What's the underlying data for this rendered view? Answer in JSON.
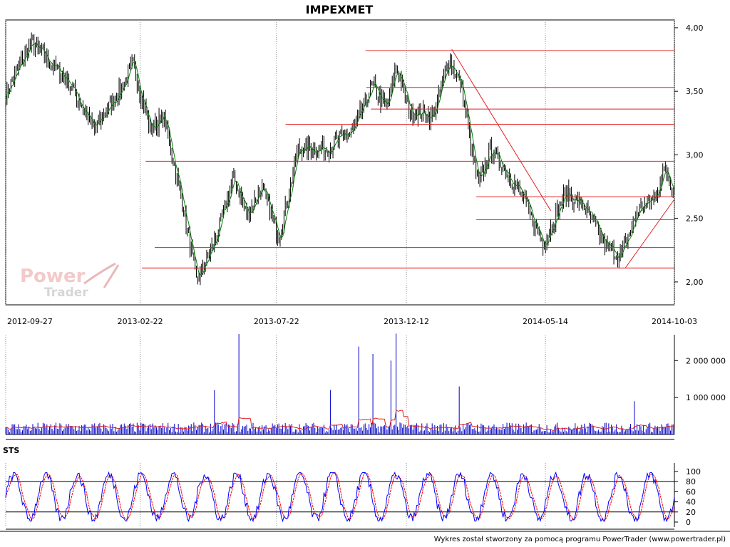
{
  "title": "IMPEXMET",
  "footer": "Wykres został stworzony za pomocą programu PowerTrader (www.powertrader.pl)",
  "watermark": {
    "line1": "Power",
    "line2": "Trader"
  },
  "colors": {
    "price_candles": "#000000",
    "price_average": "#008000",
    "trend_lines": "#e02020",
    "volume_bars": "#0000cc",
    "volume_average": "#e02020",
    "stoch_k": "#0000ff",
    "stoch_d": "#ff0000",
    "grid": "#000000"
  },
  "chart_data": [
    {
      "name": "price",
      "type": "candlestick",
      "title": "IMPEXMET",
      "x_ticks": [
        "2012-09-27",
        "2013-02-22",
        "2013-07-22",
        "2013-12-12",
        "2014-05-14",
        "2014-10-03"
      ],
      "y_ticks": [
        "4,00",
        "3,50",
        "3,00",
        "2,50",
        "2,00"
      ],
      "y_tick_values": [
        4.0,
        3.5,
        3.0,
        2.5,
        2.0
      ],
      "ylim": [
        1.82,
        4.05
      ],
      "x_range": [
        "2012-09-27",
        "2014-10-03"
      ],
      "grid": "vertical dotted",
      "key_closes": [
        {
          "date": "2012-09-27",
          "close": 3.48
        },
        {
          "date": "2012-10-25",
          "close": 3.88
        },
        {
          "date": "2012-12-05",
          "close": 3.58
        },
        {
          "date": "2013-01-02",
          "close": 3.2
        },
        {
          "date": "2013-02-01",
          "close": 3.52
        },
        {
          "date": "2013-02-14",
          "close": 3.72
        },
        {
          "date": "2013-03-05",
          "close": 3.2
        },
        {
          "date": "2013-03-20",
          "close": 3.3
        },
        {
          "date": "2013-04-10",
          "close": 2.6
        },
        {
          "date": "2013-04-25",
          "close": 2.0
        },
        {
          "date": "2013-05-15",
          "close": 2.32
        },
        {
          "date": "2013-06-05",
          "close": 2.82
        },
        {
          "date": "2013-06-20",
          "close": 2.52
        },
        {
          "date": "2013-07-05",
          "close": 2.75
        },
        {
          "date": "2013-07-25",
          "close": 2.35
        },
        {
          "date": "2013-08-15",
          "close": 3.05
        },
        {
          "date": "2013-09-15",
          "close": 3.05
        },
        {
          "date": "2013-10-15",
          "close": 3.2
        },
        {
          "date": "2013-11-05",
          "close": 3.55
        },
        {
          "date": "2013-11-20",
          "close": 3.35
        },
        {
          "date": "2013-12-01",
          "close": 3.7
        },
        {
          "date": "2013-12-15",
          "close": 3.35
        },
        {
          "date": "2014-01-10",
          "close": 3.3
        },
        {
          "date": "2014-01-28",
          "close": 3.75
        },
        {
          "date": "2014-02-10",
          "close": 3.55
        },
        {
          "date": "2014-03-01",
          "close": 2.75
        },
        {
          "date": "2014-03-15",
          "close": 3.05
        },
        {
          "date": "2014-04-15",
          "close": 2.72
        },
        {
          "date": "2014-05-12",
          "close": 2.3
        },
        {
          "date": "2014-06-05",
          "close": 2.7
        },
        {
          "date": "2014-06-25",
          "close": 2.6
        },
        {
          "date": "2014-07-20",
          "close": 2.28
        },
        {
          "date": "2014-08-05",
          "close": 2.2
        },
        {
          "date": "2014-08-25",
          "close": 2.58
        },
        {
          "date": "2014-09-10",
          "close": 2.65
        },
        {
          "date": "2014-09-23",
          "close": 2.9
        },
        {
          "date": "2014-10-03",
          "close": 2.7
        }
      ],
      "horizontal_levels": [
        {
          "price": 3.82,
          "from": "2013-10-28",
          "to": "2014-10-03"
        },
        {
          "price": 3.53,
          "from": "2013-10-29",
          "to": "2014-10-03"
        },
        {
          "price": 3.36,
          "from": "2013-11-03",
          "to": "2014-10-03"
        },
        {
          "price": 3.24,
          "from": "2013-08-01",
          "to": "2014-10-03"
        },
        {
          "price": 2.95,
          "from": "2013-02-28",
          "to": "2014-10-03"
        },
        {
          "price": 2.67,
          "from": "2014-02-27",
          "to": "2014-10-03"
        },
        {
          "price": 2.49,
          "from": "2014-02-27",
          "to": "2014-10-03"
        },
        {
          "price": 2.27,
          "from": "2013-03-10",
          "to": "2014-10-03"
        },
        {
          "price": 2.11,
          "from": "2013-02-24",
          "to": "2014-10-03"
        }
      ],
      "trend_lines": [
        {
          "from": {
            "date": "2014-01-31",
            "price": 3.83
          },
          "to": {
            "date": "2014-05-20",
            "price": 2.56
          }
        },
        {
          "from": {
            "date": "2014-08-10",
            "price": 2.11
          },
          "to": {
            "date": "2014-10-03",
            "price": 2.65
          }
        }
      ]
    },
    {
      "name": "volume",
      "type": "bar",
      "y_ticks": [
        "2 000 000",
        "1 000 000"
      ],
      "y_tick_values": [
        2000000,
        1000000
      ],
      "ylim": [
        0,
        2700000
      ],
      "typical_volume": 250000,
      "spikes": [
        {
          "date": "2013-05-15",
          "value": 1200000
        },
        {
          "date": "2013-06-10",
          "value": 2720000
        },
        {
          "date": "2013-09-20",
          "value": 1200000
        },
        {
          "date": "2013-10-20",
          "value": 2380000
        },
        {
          "date": "2013-11-05",
          "value": 2180000
        },
        {
          "date": "2013-11-25",
          "value": 2000000
        },
        {
          "date": "2013-12-01",
          "value": 2730000
        },
        {
          "date": "2014-02-08",
          "value": 1300000
        },
        {
          "date": "2014-08-20",
          "value": 900000
        }
      ],
      "average_line": "moving average"
    },
    {
      "name": "stochastic",
      "type": "line",
      "label": "STS",
      "y_ticks": [
        "100",
        "80",
        "60",
        "40",
        "20",
        "0"
      ],
      "y_tick_values": [
        100,
        80,
        60,
        40,
        20,
        0
      ],
      "ylim": [
        0,
        100
      ],
      "reference_lines": [
        80,
        20
      ],
      "series": [
        {
          "values_note": "%K oscillates between roughly 5 and 98 with about 21 swings over the period"
        },
        {
          "values_note": "%D smoothed"
        }
      ]
    }
  ]
}
